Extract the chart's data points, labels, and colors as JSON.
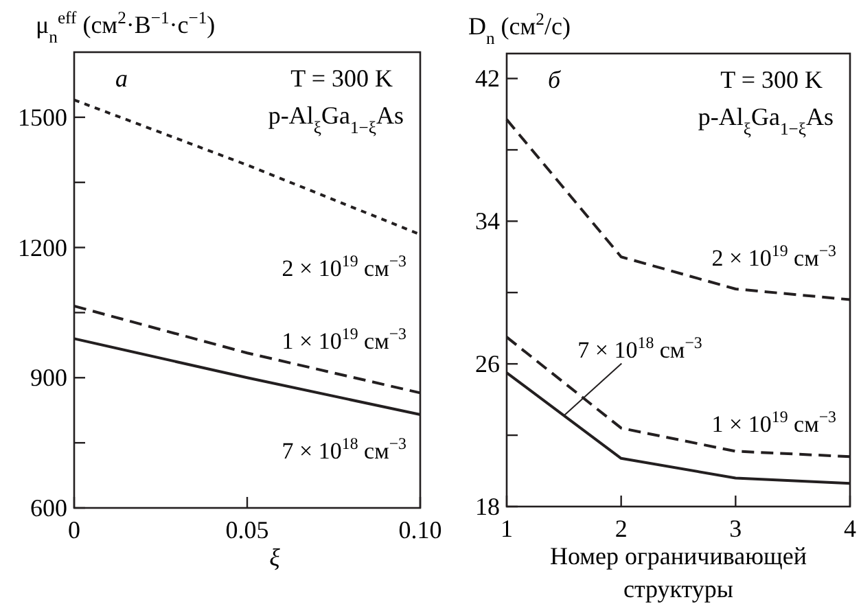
{
  "chart_data": [
    {
      "type": "line",
      "xlabel": "ξ",
      "ylabel": "μ$_{n}$$^{eff}$ (см$^{2}$·В$^{−1}$·с$^{−1}$)",
      "x": [
        0,
        0.05,
        0.1
      ],
      "xlim": [
        0,
        0.1
      ],
      "xticks": [
        0,
        0.05,
        {
          "value": 0.1,
          "label": "0.10"
        }
      ],
      "ylim": [
        600,
        1650
      ],
      "yticks": [
        600,
        {
          "value": 750,
          "label": null
        },
        900,
        {
          "value": 1050,
          "label": null
        },
        1200,
        {
          "value": 1350,
          "label": null
        },
        1500
      ],
      "series": [
        {
          "name": "2 × 10$^{19}$ см$^{−3}$",
          "color": "#231f20",
          "line_style": "dotted",
          "values": [
            1540,
            1390,
            1230
          ]
        },
        {
          "name": "1 × 10$^{19}$ см$^{−3}$",
          "color": "#231f20",
          "line_style": "dashed",
          "values": [
            1065,
            957,
            865
          ]
        },
        {
          "name": "7 × 10$^{18}$ см$^{−3}$",
          "color": "#231f20",
          "line_style": "solid",
          "values": [
            990,
            900,
            815
          ]
        }
      ],
      "annotations": [
        "а",
        "T = 300 K",
        "p-Al$_{ξ}$Ga$_{1−ξ}$As"
      ]
    },
    {
      "type": "line",
      "xlabel": "Номер ограничивающей структуры",
      "ylabel": "D$_{n}$ (см$^{2}$/с)",
      "x": [
        1,
        2,
        3,
        4
      ],
      "xlim": [
        1,
        4
      ],
      "xticks": [
        1,
        2,
        3,
        4
      ],
      "ylim": [
        18,
        43.4
      ],
      "yticks": [
        18,
        {
          "value": 22,
          "label": null
        },
        26,
        {
          "value": 30,
          "label": null
        },
        34,
        {
          "value": 38,
          "label": null
        },
        42
      ],
      "series": [
        {
          "name": "2 × 10$^{19}$ см$^{−3}$",
          "color": "#231f20",
          "line_style": "dashed",
          "values": [
            39.7,
            32.0,
            30.2,
            29.6
          ]
        },
        {
          "name": "1 × 10$^{19}$ см$^{−3}$",
          "color": "#231f20",
          "line_style": "dashed",
          "values": [
            27.5,
            22.4,
            21.1,
            20.8
          ]
        },
        {
          "name": "7 × 10$^{18}$ см$^{−3}$",
          "color": "#231f20",
          "line_style": "solid",
          "values": [
            25.5,
            20.7,
            19.6,
            19.3
          ]
        }
      ],
      "annotations": [
        "б",
        "T = 300 K",
        "p-Al$_{ξ}$Ga$_{1−ξ}$As"
      ]
    }
  ]
}
